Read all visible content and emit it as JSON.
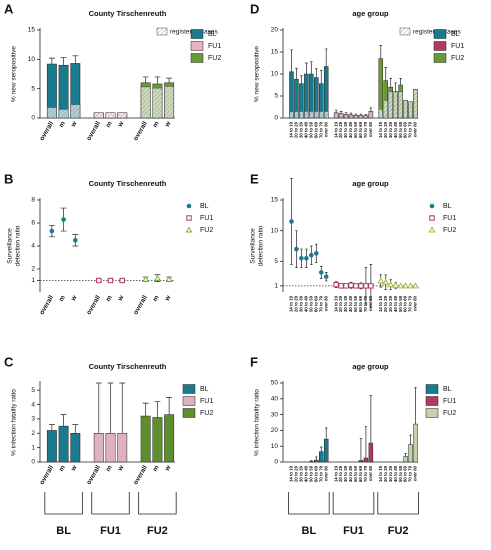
{
  "chart_data": [
    {
      "type": "bar",
      "panel": "A",
      "title": "County Tirschenreuth",
      "ylabel": [
        "% new seropositive"
      ],
      "categories": [
        "overall",
        "m",
        "w",
        "overall",
        "m",
        "w",
        "overall",
        "m",
        "w"
      ],
      "registered": {
        "name": "registered cases",
        "values": [
          1.8,
          1.5,
          2.3,
          0.9,
          0.9,
          0.9,
          5.3,
          5.1,
          5.4
        ]
      },
      "series": [
        {
          "name": "BL",
          "color": "#1b7b8e",
          "values": [
            9.2,
            9.0,
            9.3,
            null,
            null,
            null,
            null,
            null,
            null
          ],
          "errors": [
            1.0,
            1.3,
            1.3,
            null,
            null,
            null,
            null,
            null,
            null
          ]
        },
        {
          "name": "FU1",
          "color": "#e6b3c5",
          "values": [
            null,
            null,
            null,
            0.9,
            0.9,
            0.9,
            null,
            null,
            null
          ],
          "errors": [
            null,
            null,
            null,
            null,
            null,
            null,
            null,
            null,
            null
          ]
        },
        {
          "name": "FU2",
          "color": "#6a9a35",
          "values": [
            null,
            null,
            null,
            null,
            null,
            null,
            6.0,
            5.8,
            6.0
          ],
          "errors": [
            null,
            null,
            null,
            null,
            null,
            null,
            1.0,
            1.2,
            0.8
          ]
        }
      ],
      "ylim": [
        0,
        15
      ],
      "yticks": [
        0,
        5,
        10,
        15
      ]
    },
    {
      "type": "scatter",
      "panel": "B",
      "title": "County Tirschenreuth",
      "ylabel": [
        "Surveillance",
        "detection ratio"
      ],
      "categories": [
        "overall",
        "m",
        "w",
        "overall",
        "m",
        "w",
        "overall",
        "m",
        "w"
      ],
      "reference_line": 1,
      "series": [
        {
          "name": "BL",
          "color": "#1b7b8e",
          "marker": "circle",
          "values": [
            5.3,
            6.3,
            4.5,
            null,
            null,
            null,
            null,
            null,
            null
          ],
          "errors": [
            0.5,
            1.0,
            0.5,
            null,
            null,
            null,
            null,
            null,
            null
          ]
        },
        {
          "name": "FU1",
          "color": "#b03a60",
          "marker": "square",
          "values": [
            null,
            null,
            null,
            1,
            1,
            1,
            null,
            null,
            null
          ],
          "errors": [
            null,
            null,
            null,
            0.1,
            0.1,
            0.1,
            null,
            null,
            null
          ]
        },
        {
          "name": "FU2",
          "color": "#7fae3a",
          "marker": "triangle",
          "values": [
            null,
            null,
            null,
            null,
            null,
            null,
            1.1,
            1.2,
            1.1
          ],
          "errors": [
            null,
            null,
            null,
            null,
            null,
            null,
            0.2,
            0.3,
            0.2
          ]
        }
      ],
      "ylim": [
        0,
        8
      ],
      "yticks": [
        1,
        2,
        4,
        6,
        8
      ]
    },
    {
      "type": "bar",
      "panel": "C",
      "title": "County Tirschenreuth",
      "ylabel": [
        "% infection fatality ratio"
      ],
      "categories": [
        "overall",
        "m",
        "w",
        "overall",
        "m",
        "w",
        "overall",
        "m",
        "w"
      ],
      "group_labels": [
        "BL",
        "FU1",
        "FU2"
      ],
      "series": [
        {
          "name": "BL",
          "color": "#1b7b8e",
          "values": [
            2.2,
            2.5,
            2.0,
            null,
            null,
            null,
            null,
            null,
            null
          ],
          "errors": [
            0.4,
            0.8,
            0.6,
            null,
            null,
            null,
            null,
            null,
            null
          ]
        },
        {
          "name": "FU1",
          "color": "#dfb0c2",
          "values": [
            null,
            null,
            null,
            2,
            2,
            2,
            null,
            null,
            null
          ],
          "errors": [
            null,
            null,
            null,
            3.5,
            3.5,
            3.5,
            null,
            null,
            null
          ]
        },
        {
          "name": "FU2",
          "color": "#5f8f2c",
          "values": [
            null,
            null,
            null,
            null,
            null,
            null,
            3.2,
            3.1,
            3.3
          ],
          "errors": [
            null,
            null,
            null,
            null,
            null,
            null,
            0.9,
            1.1,
            1.2
          ]
        }
      ],
      "ylim": [
        0,
        5.5
      ],
      "yticks": [
        0,
        1,
        2,
        3,
        4,
        5
      ]
    },
    {
      "type": "bar",
      "panel": "D",
      "title": "age group",
      "ylabel": [
        "% new seropositive"
      ],
      "categories": [
        "14 to 19",
        "20 to 29",
        "30 to 39",
        "40 to 49",
        "50 to 59",
        "60 to 69",
        "70 to 79",
        "over 80",
        "14 to 19",
        "20 to 29",
        "30 to 39",
        "40 to 49",
        "50 to 59",
        "60 to 69",
        "70 to 79",
        "over 80",
        "14 to 19",
        "20 to 29",
        "30 to 39",
        "40 to 49",
        "50 to 59",
        "60 to 69",
        "70 to 79",
        "over 80"
      ],
      "registered": {
        "name": "registered cases",
        "values": [
          1.5,
          1.5,
          1.5,
          1.5,
          1.5,
          1.5,
          1.5,
          1.5,
          1.2,
          1,
          0.8,
          0.7,
          0.6,
          0.6,
          0.5,
          1.5,
          2,
          4,
          6,
          6,
          6,
          4,
          3.7,
          6.5
        ]
      },
      "series": [
        {
          "name": "BL",
          "color": "#1b7b8e",
          "values": [
            10.5,
            8.8,
            7.8,
            10,
            10,
            9.2,
            7.8,
            11.7,
            null,
            null,
            null,
            null,
            null,
            null,
            null,
            null,
            null,
            null,
            null,
            null,
            null,
            null,
            null,
            null
          ],
          "errors": [
            5,
            2.5,
            1.8,
            2.5,
            2.8,
            2,
            3,
            4,
            null,
            null,
            null,
            null,
            null,
            null,
            null,
            null,
            null,
            null,
            null,
            null,
            null,
            null,
            null,
            null
          ]
        },
        {
          "name": "FU1",
          "color": "#b03a60",
          "values": [
            null,
            null,
            null,
            null,
            null,
            null,
            null,
            null,
            1.2,
            1,
            0.8,
            0.7,
            0.6,
            0.6,
            0.5,
            1.5,
            null,
            null,
            null,
            null,
            null,
            null,
            null,
            null
          ],
          "errors": [
            null,
            null,
            null,
            null,
            null,
            null,
            null,
            null,
            0.6,
            0.5,
            0.4,
            0.4,
            0.3,
            0.3,
            0.3,
            0.8,
            null,
            null,
            null,
            null,
            null,
            null,
            null,
            null
          ]
        },
        {
          "name": "FU2",
          "color": "#6a9a35",
          "values": [
            null,
            null,
            null,
            null,
            null,
            null,
            null,
            null,
            null,
            null,
            null,
            null,
            null,
            null,
            null,
            null,
            13.5,
            8.5,
            7,
            6,
            7.5,
            4,
            3.7,
            6.5
          ],
          "errors": [
            null,
            null,
            null,
            null,
            null,
            null,
            null,
            null,
            null,
            null,
            null,
            null,
            null,
            null,
            null,
            null,
            3,
            3,
            2,
            2,
            1.5,
            null,
            null,
            null
          ]
        }
      ],
      "ylim": [
        0,
        20
      ],
      "yticks": [
        0,
        5,
        10,
        15,
        20
      ]
    },
    {
      "type": "scatter",
      "panel": "E",
      "title": "age group",
      "ylabel": [
        "Surveillance",
        "detection ratio"
      ],
      "categories": [
        "14 to 19",
        "20 to 29",
        "30 to 39",
        "40 to 49",
        "50 to 59",
        "60 to 69",
        "70 to 79",
        "over 80",
        "14 to 19",
        "20 to 29",
        "30 to 39",
        "40 to 49",
        "50 to 59",
        "60 to 69",
        "70 to 79",
        "over 80",
        "14 to 19",
        "20 to 29",
        "30 to 39",
        "40 to 49",
        "50 to 59",
        "60 to 69",
        "70 to 79",
        "over 80"
      ],
      "reference_line": 1,
      "series": [
        {
          "name": "BL",
          "color": "#1b7b8e",
          "marker": "circle",
          "values": [
            11.5,
            7,
            5.5,
            5.5,
            6,
            6.3,
            3.2,
            2.5,
            null,
            null,
            null,
            null,
            null,
            null,
            null,
            null,
            null,
            null,
            null,
            null,
            null,
            null,
            null,
            null
          ],
          "errors": [
            7,
            3,
            1.5,
            1.5,
            1.5,
            1.5,
            1,
            0.7,
            null,
            null,
            null,
            null,
            null,
            null,
            null,
            null,
            null,
            null,
            null,
            null,
            null,
            null,
            null,
            null
          ]
        },
        {
          "name": "FU1",
          "color": "#b03a60",
          "marker": "square",
          "values": [
            null,
            null,
            null,
            null,
            null,
            null,
            null,
            null,
            1.2,
            1,
            1,
            1.1,
            1,
            1,
            1,
            1,
            null,
            null,
            null,
            null,
            null,
            null,
            null,
            null
          ],
          "errors": [
            null,
            null,
            null,
            null,
            null,
            null,
            null,
            null,
            0.5,
            0.3,
            0.2,
            0.5,
            0.2,
            0.5,
            3,
            3.5,
            null,
            null,
            null,
            null,
            null,
            null,
            null,
            null
          ]
        },
        {
          "name": "FU2",
          "color": "#9cbc3e",
          "marker": "triangle",
          "values": [
            null,
            null,
            null,
            null,
            null,
            null,
            null,
            null,
            null,
            null,
            null,
            null,
            null,
            null,
            null,
            null,
            1.8,
            1.6,
            1.2,
            1.1,
            1,
            1,
            1,
            1
          ],
          "errors": [
            null,
            null,
            null,
            null,
            null,
            null,
            null,
            null,
            null,
            null,
            null,
            null,
            null,
            null,
            null,
            null,
            1,
            1.2,
            0.8,
            0.5,
            0.2,
            0.2,
            0.2,
            0.2
          ]
        }
      ],
      "ylim": [
        0,
        15
      ],
      "yticks": [
        1,
        5,
        10,
        15
      ]
    },
    {
      "type": "bar",
      "panel": "F",
      "title": "age group",
      "ylabel": [
        "% infection fatality ratio"
      ],
      "categories": [
        "14 to 19",
        "20 to 29",
        "30 to 39",
        "40 to 49",
        "50 to 59",
        "60 to 69",
        "70 to 79",
        "over 80",
        "14 to 19",
        "20 to 29",
        "30 to 39",
        "40 to 49",
        "50 to 59",
        "60 to 69",
        "70 to 79",
        "over 80",
        "14 to 19",
        "20 to 29",
        "30 to 39",
        "40 to 49",
        "50 to 59",
        "60 to 69",
        "70 to 79",
        "over 80"
      ],
      "group_labels": [
        "BL",
        "FU1",
        "FU2"
      ],
      "series": [
        {
          "name": "BL",
          "color": "#1b7b8e",
          "values": [
            0,
            0,
            0,
            0,
            0.3,
            1.2,
            6.5,
            14.5,
            null,
            null,
            null,
            null,
            null,
            null,
            null,
            null,
            null,
            null,
            null,
            null,
            null,
            null,
            null,
            null
          ],
          "errors": [
            null,
            null,
            null,
            null,
            0.5,
            2,
            3,
            7,
            null,
            null,
            null,
            null,
            null,
            null,
            null,
            null,
            null,
            null,
            null,
            null,
            null,
            null,
            null,
            null
          ]
        },
        {
          "name": "FU1",
          "color": "#b03a60",
          "values": [
            null,
            null,
            null,
            null,
            null,
            null,
            null,
            null,
            0,
            0,
            0,
            0,
            0,
            1,
            2.5,
            12,
            null,
            null,
            null,
            null,
            null,
            null,
            null,
            null
          ],
          "errors": [
            null,
            null,
            null,
            null,
            null,
            null,
            null,
            null,
            null,
            null,
            null,
            null,
            null,
            14,
            20,
            30,
            null,
            null,
            null,
            null,
            null,
            null,
            null,
            null
          ]
        },
        {
          "name": "FU2",
          "color": "#c5d3a8",
          "values": [
            null,
            null,
            null,
            null,
            null,
            null,
            null,
            null,
            null,
            null,
            null,
            null,
            null,
            null,
            null,
            null,
            0,
            0,
            0,
            0,
            0,
            3.5,
            11,
            24
          ],
          "errors": [
            null,
            null,
            null,
            null,
            null,
            null,
            null,
            null,
            null,
            null,
            null,
            null,
            null,
            null,
            null,
            null,
            null,
            null,
            null,
            null,
            null,
            2,
            6,
            23
          ]
        }
      ],
      "ylim": [
        0,
        50
      ],
      "yticks": [
        0,
        10,
        20,
        30,
        40,
        50
      ]
    }
  ]
}
